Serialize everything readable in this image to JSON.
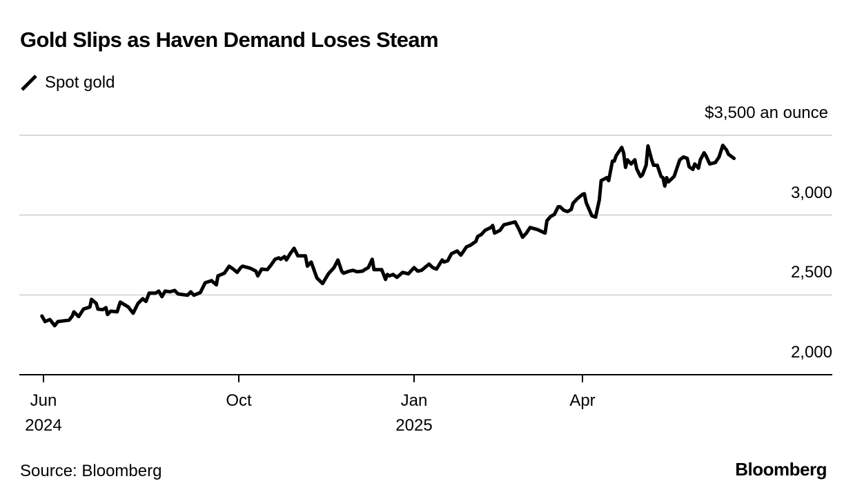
{
  "chart_data": {
    "type": "line",
    "title": "Gold Slips as Haven Demand Loses Steam",
    "legend": [
      {
        "name": "Spot gold",
        "color": "#000000"
      }
    ],
    "legend_position": "top-left",
    "unit_label": "$3,500 an ounce",
    "xlabel": "",
    "ylabel": "",
    "ylim": [
      2000,
      3500
    ],
    "y_ticks": [
      {
        "value": 3500,
        "label": "$3,500 an ounce"
      },
      {
        "value": 3000,
        "label": "3,000"
      },
      {
        "value": 2500,
        "label": "2,500"
      },
      {
        "value": 2000,
        "label": "2,000"
      }
    ],
    "x_ticks": [
      {
        "date": "2024-06-01",
        "label": "Jun\n2024"
      },
      {
        "date": "2024-10-01",
        "label": "Oct"
      },
      {
        "date": "2025-01-01",
        "label": "Jan\n2025"
      },
      {
        "date": "2025-04-01",
        "label": "Apr"
      }
    ],
    "grid": true,
    "series": [
      {
        "name": "Spot gold",
        "color": "#000000",
        "points": [
          [
            "2024-05-31",
            2368
          ],
          [
            "2024-06-02",
            2333
          ],
          [
            "2024-06-05",
            2346
          ],
          [
            "2024-06-08",
            2307
          ],
          [
            "2024-06-10",
            2333
          ],
          [
            "2024-06-14",
            2338
          ],
          [
            "2024-06-17",
            2342
          ],
          [
            "2024-06-19",
            2368
          ],
          [
            "2024-06-20",
            2394
          ],
          [
            "2024-06-23",
            2364
          ],
          [
            "2024-06-26",
            2411
          ],
          [
            "2024-06-30",
            2424
          ],
          [
            "2024-07-01",
            2472
          ],
          [
            "2024-07-04",
            2446
          ],
          [
            "2024-07-05",
            2411
          ],
          [
            "2024-07-08",
            2407
          ],
          [
            "2024-07-10",
            2420
          ],
          [
            "2024-07-11",
            2377
          ],
          [
            "2024-07-13",
            2398
          ],
          [
            "2024-07-17",
            2394
          ],
          [
            "2024-07-19",
            2455
          ],
          [
            "2024-07-24",
            2424
          ],
          [
            "2024-07-27",
            2385
          ],
          [
            "2024-07-30",
            2446
          ],
          [
            "2024-08-02",
            2476
          ],
          [
            "2024-08-04",
            2459
          ],
          [
            "2024-08-06",
            2511
          ],
          [
            "2024-08-10",
            2511
          ],
          [
            "2024-08-12",
            2524
          ],
          [
            "2024-08-14",
            2489
          ],
          [
            "2024-08-16",
            2524
          ],
          [
            "2024-08-19",
            2519
          ],
          [
            "2024-08-22",
            2528
          ],
          [
            "2024-08-24",
            2506
          ],
          [
            "2024-08-27",
            2502
          ],
          [
            "2024-08-30",
            2498
          ],
          [
            "2024-09-01",
            2519
          ],
          [
            "2024-09-03",
            2498
          ],
          [
            "2024-09-07",
            2515
          ],
          [
            "2024-09-10",
            2576
          ],
          [
            "2024-09-14",
            2589
          ],
          [
            "2024-09-17",
            2563
          ],
          [
            "2024-09-18",
            2619
          ],
          [
            "2024-09-22",
            2636
          ],
          [
            "2024-09-25",
            2680
          ],
          [
            "2024-09-28",
            2658
          ],
          [
            "2024-09-30",
            2641
          ],
          [
            "2024-10-02",
            2671
          ],
          [
            "2024-10-03",
            2680
          ],
          [
            "2024-10-07",
            2667
          ],
          [
            "2024-10-10",
            2649
          ],
          [
            "2024-10-11",
            2619
          ],
          [
            "2024-10-13",
            2662
          ],
          [
            "2024-10-16",
            2658
          ],
          [
            "2024-10-18",
            2688
          ],
          [
            "2024-10-20",
            2723
          ],
          [
            "2024-10-22",
            2732
          ],
          [
            "2024-10-23",
            2723
          ],
          [
            "2024-10-25",
            2740
          ],
          [
            "2024-10-26",
            2719
          ],
          [
            "2024-10-28",
            2758
          ],
          [
            "2024-10-30",
            2792
          ],
          [
            "2024-11-01",
            2745
          ],
          [
            "2024-11-05",
            2745
          ],
          [
            "2024-11-06",
            2680
          ],
          [
            "2024-11-08",
            2706
          ],
          [
            "2024-11-11",
            2606
          ],
          [
            "2024-11-14",
            2571
          ],
          [
            "2024-11-17",
            2632
          ],
          [
            "2024-11-20",
            2671
          ],
          [
            "2024-11-22",
            2719
          ],
          [
            "2024-11-24",
            2649
          ],
          [
            "2024-11-25",
            2636
          ],
          [
            "2024-11-28",
            2649
          ],
          [
            "2024-11-30",
            2654
          ],
          [
            "2024-12-02",
            2645
          ],
          [
            "2024-12-05",
            2649
          ],
          [
            "2024-12-06",
            2658
          ],
          [
            "2024-12-08",
            2671
          ],
          [
            "2024-12-10",
            2723
          ],
          [
            "2024-12-11",
            2658
          ],
          [
            "2024-12-15",
            2658
          ],
          [
            "2024-12-17",
            2597
          ],
          [
            "2024-12-18",
            2628
          ],
          [
            "2024-12-19",
            2619
          ],
          [
            "2024-12-21",
            2628
          ],
          [
            "2024-12-23",
            2610
          ],
          [
            "2024-12-26",
            2641
          ],
          [
            "2024-12-29",
            2632
          ],
          [
            "2025-01-01",
            2671
          ],
          [
            "2025-01-03",
            2649
          ],
          [
            "2025-01-05",
            2654
          ],
          [
            "2025-01-09",
            2693
          ],
          [
            "2025-01-11",
            2671
          ],
          [
            "2025-01-13",
            2662
          ],
          [
            "2025-01-16",
            2719
          ],
          [
            "2025-01-17",
            2706
          ],
          [
            "2025-01-19",
            2714
          ],
          [
            "2025-01-21",
            2758
          ],
          [
            "2025-01-24",
            2775
          ],
          [
            "2025-01-26",
            2749
          ],
          [
            "2025-01-27",
            2766
          ],
          [
            "2025-01-29",
            2801
          ],
          [
            "2025-01-31",
            2810
          ],
          [
            "2025-02-03",
            2835
          ],
          [
            "2025-02-04",
            2866
          ],
          [
            "2025-02-06",
            2879
          ],
          [
            "2025-02-08",
            2905
          ],
          [
            "2025-02-11",
            2922
          ],
          [
            "2025-02-12",
            2935
          ],
          [
            "2025-02-13",
            2887
          ],
          [
            "2025-02-16",
            2905
          ],
          [
            "2025-02-18",
            2939
          ],
          [
            "2025-02-21",
            2948
          ],
          [
            "2025-02-24",
            2957
          ],
          [
            "2025-02-26",
            2913
          ],
          [
            "2025-02-28",
            2861
          ],
          [
            "2025-03-02",
            2887
          ],
          [
            "2025-03-04",
            2922
          ],
          [
            "2025-03-08",
            2909
          ],
          [
            "2025-03-12",
            2887
          ],
          [
            "2025-03-13",
            2965
          ],
          [
            "2025-03-15",
            2991
          ],
          [
            "2025-03-17",
            3004
          ],
          [
            "2025-03-19",
            3052
          ],
          [
            "2025-03-20",
            3052
          ],
          [
            "2025-03-22",
            3030
          ],
          [
            "2025-03-24",
            3022
          ],
          [
            "2025-03-26",
            3035
          ],
          [
            "2025-03-27",
            3074
          ],
          [
            "2025-03-29",
            3100
          ],
          [
            "2025-04-01",
            3130
          ],
          [
            "2025-04-02",
            3134
          ],
          [
            "2025-04-03",
            3078
          ],
          [
            "2025-04-06",
            2996
          ],
          [
            "2025-04-08",
            2987
          ],
          [
            "2025-04-10",
            3095
          ],
          [
            "2025-04-11",
            3216
          ],
          [
            "2025-04-14",
            3234
          ],
          [
            "2025-04-15",
            3216
          ],
          [
            "2025-04-17",
            3338
          ],
          [
            "2025-04-18",
            3338
          ],
          [
            "2025-04-19",
            3372
          ],
          [
            "2025-04-22",
            3424
          ],
          [
            "2025-04-23",
            3390
          ],
          [
            "2025-04-24",
            3299
          ],
          [
            "2025-04-25",
            3346
          ],
          [
            "2025-04-27",
            3320
          ],
          [
            "2025-04-29",
            3346
          ],
          [
            "2025-04-30",
            3290
          ],
          [
            "2025-05-02",
            3242
          ],
          [
            "2025-05-03",
            3251
          ],
          [
            "2025-05-05",
            3312
          ],
          [
            "2025-05-06",
            3433
          ],
          [
            "2025-05-08",
            3346
          ],
          [
            "2025-05-09",
            3312
          ],
          [
            "2025-05-11",
            3312
          ],
          [
            "2025-05-13",
            3242
          ],
          [
            "2025-05-14",
            3234
          ],
          [
            "2025-05-15",
            3182
          ],
          [
            "2025-05-16",
            3234
          ],
          [
            "2025-05-17",
            3208
          ],
          [
            "2025-05-20",
            3242
          ],
          [
            "2025-05-22",
            3312
          ],
          [
            "2025-05-23",
            3346
          ],
          [
            "2025-05-25",
            3364
          ],
          [
            "2025-05-27",
            3355
          ],
          [
            "2025-05-28",
            3303
          ],
          [
            "2025-05-30",
            3286
          ],
          [
            "2025-05-31",
            3320
          ],
          [
            "2025-06-02",
            3294
          ],
          [
            "2025-06-03",
            3346
          ],
          [
            "2025-06-05",
            3390
          ],
          [
            "2025-06-06",
            3372
          ],
          [
            "2025-06-08",
            3320
          ],
          [
            "2025-06-11",
            3329
          ],
          [
            "2025-06-13",
            3364
          ],
          [
            "2025-06-15",
            3437
          ],
          [
            "2025-06-17",
            3407
          ],
          [
            "2025-06-18",
            3381
          ],
          [
            "2025-06-21",
            3355
          ]
        ]
      }
    ],
    "source": "Source: Bloomberg",
    "brand": "Bloomberg"
  }
}
